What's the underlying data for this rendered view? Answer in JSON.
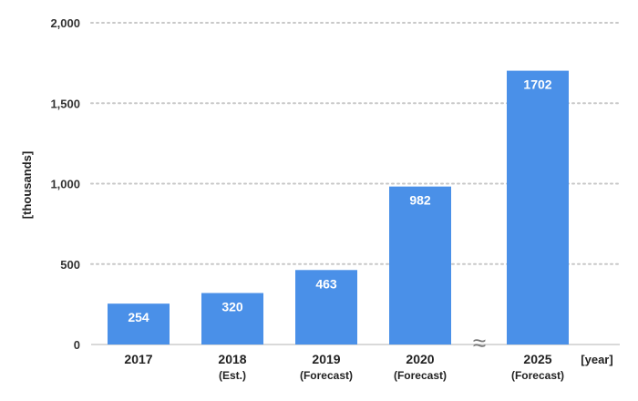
{
  "chart_data": {
    "type": "bar",
    "categories": [
      "2017",
      "2018",
      "2019",
      "2020",
      "2025"
    ],
    "category_sublabels": [
      "",
      "(Est.)",
      "(Forecast)",
      "(Forecast)",
      "(Forecast)"
    ],
    "values": [
      254,
      320,
      463,
      982,
      1702
    ],
    "value_labels": [
      "254",
      "320",
      "463",
      "982",
      "1702"
    ],
    "ylabel": "[thousands]",
    "xlabel": "[year]",
    "ylim": [
      0,
      2000
    ],
    "yticks": [
      0,
      500,
      1000,
      1500,
      2000
    ],
    "ytick_labels": [
      "0",
      "500",
      "1,000",
      "1,500",
      "2,000"
    ],
    "axis_break_symbol": "≈",
    "grid": true,
    "colors": {
      "bar": "#4A90E8",
      "grid": "#c8c8c8",
      "baseline": "#d9d9d9",
      "value_label": "#ffffff",
      "text": "#222222"
    }
  }
}
